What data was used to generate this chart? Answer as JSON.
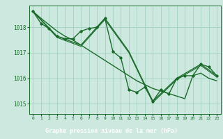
{
  "title": "Graphe pression niveau de la mer (hPa)",
  "bg_color": "#cce8df",
  "plot_bg_color": "#cce8df",
  "grid_color": "#99ccbb",
  "line_color": "#1a6b2a",
  "title_bg_color": "#2d6b3a",
  "title_text_color": "#ffffff",
  "ylim": [
    1014.6,
    1018.85
  ],
  "xlim": [
    -0.5,
    23.5
  ],
  "yticks": [
    1015,
    1016,
    1017,
    1018
  ],
  "xtick_labels": [
    "0",
    "1",
    "2",
    "3",
    "4",
    "5",
    "6",
    "7",
    "8",
    "9",
    "10",
    "11",
    "12",
    "13",
    "14",
    "15",
    "16",
    "17",
    "18",
    "19",
    "20",
    "21",
    "22",
    "23"
  ],
  "series": [
    {
      "x": [
        0,
        1,
        2,
        3,
        4,
        5,
        6,
        7,
        8,
        9,
        10,
        11,
        12,
        13,
        14,
        15,
        16,
        17,
        18,
        19,
        20,
        21,
        22,
        23
      ],
      "y": [
        1018.62,
        1018.35,
        1018.1,
        1017.85,
        1017.65,
        1017.5,
        1017.3,
        1017.1,
        1016.9,
        1016.7,
        1016.5,
        1016.3,
        1016.1,
        1015.9,
        1015.75,
        1015.6,
        1015.5,
        1015.4,
        1015.3,
        1015.2,
        1016.1,
        1016.2,
        1016.0,
        1015.9
      ],
      "style": "line_only",
      "lw": 1.0
    },
    {
      "x": [
        0,
        1,
        2,
        3,
        4,
        5,
        6,
        7,
        8,
        9,
        10,
        11,
        12,
        13,
        14,
        15,
        16,
        17,
        18,
        19,
        20,
        21,
        22,
        23
      ],
      "y": [
        1018.62,
        1018.15,
        1017.95,
        1017.65,
        1017.55,
        1017.55,
        1017.85,
        1017.95,
        1018.0,
        1018.35,
        1017.05,
        1016.8,
        1015.55,
        1015.45,
        1015.65,
        1015.1,
        1015.55,
        1015.38,
        1016.0,
        1016.1,
        1016.1,
        1016.55,
        1016.45,
        1016.1
      ],
      "style": "line_with_markers",
      "lw": 1.0
    },
    {
      "x": [
        0,
        3,
        6,
        9,
        12,
        15,
        18,
        21,
        23
      ],
      "y": [
        1018.62,
        1017.65,
        1017.3,
        1018.35,
        1017.05,
        1015.1,
        1016.0,
        1016.55,
        1016.1
      ],
      "style": "line_only",
      "lw": 1.0
    },
    {
      "x": [
        0,
        3,
        6,
        9,
        12,
        15,
        18,
        21,
        23
      ],
      "y": [
        1018.62,
        1017.6,
        1017.25,
        1018.3,
        1017.0,
        1015.05,
        1015.95,
        1016.5,
        1016.05
      ],
      "style": "line_only",
      "lw": 0.8
    }
  ]
}
